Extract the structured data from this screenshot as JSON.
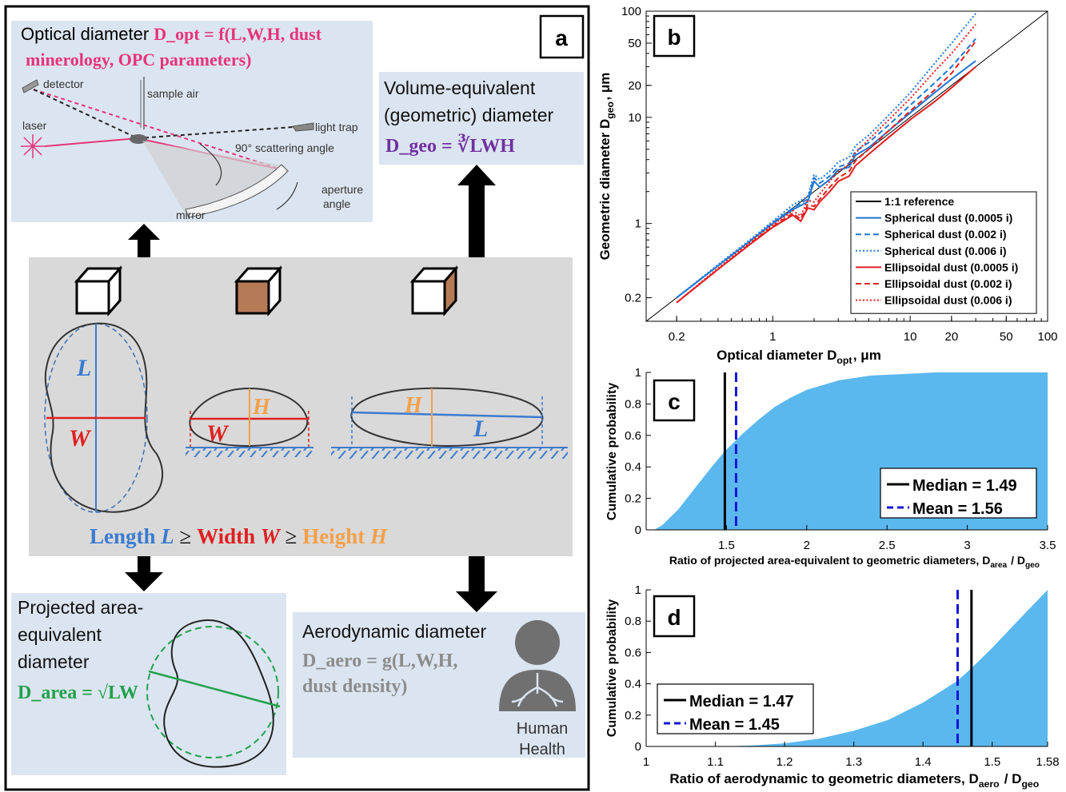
{
  "panel_a": {
    "label": "a",
    "optical": {
      "prefix": "Optical diameter ",
      "formula_line1": "D_opt = f(L,W,H, dust",
      "formula_line2": "minerology, OPC parameters)",
      "detector": "detector",
      "sample_air": "sample air",
      "laser": "laser",
      "light_trap": "light trap",
      "scattering": "90° scattering angle",
      "aperture1": "aperture",
      "aperture2": "angle",
      "mirror": "mirror"
    },
    "volume": {
      "line1": "Volume-equivalent",
      "line2": "(geometric) diameter",
      "formula": "D_geo = ∛LWH"
    },
    "shape": {
      "L": "L",
      "W": "W",
      "H": "H",
      "caption_length": "Length ",
      "caption_L": "L",
      "caption_ge1": " ≥ ",
      "caption_width": "Width ",
      "caption_W": "W",
      "caption_ge2": " ≥ ",
      "caption_height": "Height ",
      "caption_H": "H"
    },
    "projected": {
      "line1": "Projected area-",
      "line2": "equivalent",
      "line3": "diameter",
      "formula": "D_area = √LW"
    },
    "aero": {
      "title": "Aerodynamic diameter",
      "formula_line1": "D_aero = g(L,W,H,",
      "formula_line2": "dust density)",
      "human1": "Human",
      "human2": "Health"
    }
  },
  "chart_data": [
    {
      "panel": "b",
      "type": "line",
      "xlabel": "Optical diameter D_opt, μm",
      "ylabel": "Geometric diameter D_geo, μm",
      "xscale": "log",
      "yscale": "log",
      "xlim": [
        0.12,
        100
      ],
      "ylim": [
        0.12,
        100
      ],
      "xticks": [
        0.2,
        1,
        10,
        20,
        50,
        100
      ],
      "xtick_labels": [
        "0.2",
        "1",
        "10",
        "20",
        "50",
        "100"
      ],
      "yticks": [
        0.2,
        1,
        10,
        20,
        50,
        100
      ],
      "ytick_labels": [
        "0.2",
        "1",
        "10",
        "20",
        "50",
        "100"
      ],
      "legend_position": "bottom-right",
      "series": [
        {
          "name": "1:1 reference",
          "color": "#000000",
          "dash": "solid",
          "x": [
            0.12,
            100
          ],
          "y": [
            0.12,
            100
          ]
        },
        {
          "name": "Spherical dust (0.0005 i)",
          "color": "#1f77d4",
          "dash": "solid",
          "x": [
            0.2,
            0.4,
            0.7,
            1.0,
            1.4,
            1.8,
            2.0,
            2.2,
            2.6,
            3.0,
            3.6,
            4.0,
            5.0,
            7.0,
            10,
            15,
            20,
            30
          ],
          "y": [
            0.2,
            0.4,
            0.7,
            1.0,
            1.35,
            1.6,
            2.5,
            2.2,
            2.6,
            3.2,
            3.4,
            4.4,
            5.2,
            7.5,
            11,
            17,
            23,
            34
          ]
        },
        {
          "name": "Spherical dust (0.002 i)",
          "color": "#1f77d4",
          "dash": "dashed",
          "x": [
            0.2,
            0.4,
            0.7,
            1.0,
            1.4,
            1.8,
            2.0,
            2.2,
            2.6,
            3.0,
            3.6,
            4.0,
            5.0,
            7.0,
            10,
            15,
            20,
            30
          ],
          "y": [
            0.2,
            0.4,
            0.7,
            1.02,
            1.4,
            1.7,
            2.7,
            2.4,
            2.8,
            3.4,
            3.7,
            4.8,
            5.8,
            8.5,
            13,
            21,
            30,
            55
          ]
        },
        {
          "name": "Spherical dust (0.006 i)",
          "color": "#1f77d4",
          "dash": "dotted",
          "x": [
            0.2,
            0.4,
            0.7,
            1.0,
            1.4,
            1.8,
            2.0,
            2.2,
            2.6,
            3.0,
            3.6,
            4.0,
            5.0,
            7.0,
            10,
            15,
            20,
            30
          ],
          "y": [
            0.2,
            0.41,
            0.72,
            1.05,
            1.5,
            1.8,
            2.9,
            2.6,
            3.1,
            3.8,
            4.2,
            5.4,
            6.8,
            10.5,
            17,
            32,
            50,
            95
          ]
        },
        {
          "name": "Ellipsoidal dust (0.0005 i)",
          "color": "#e02020",
          "dash": "solid",
          "x": [
            0.2,
            0.4,
            0.7,
            1.0,
            1.4,
            1.6,
            1.8,
            2.0,
            2.2,
            2.6,
            3.0,
            3.6,
            4.0,
            5.0,
            7.0,
            10,
            15,
            20,
            30
          ],
          "y": [
            0.18,
            0.37,
            0.65,
            0.92,
            1.2,
            1.05,
            1.4,
            1.35,
            1.6,
            2.0,
            2.5,
            2.8,
            3.5,
            4.5,
            6.5,
            9.5,
            14,
            19,
            30
          ]
        },
        {
          "name": "Ellipsoidal dust (0.002 i)",
          "color": "#e02020",
          "dash": "dashed",
          "x": [
            0.2,
            0.4,
            0.7,
            1.0,
            1.4,
            1.6,
            1.8,
            2.0,
            2.2,
            2.6,
            3.0,
            3.6,
            4.0,
            5.0,
            7.0,
            10,
            15,
            20,
            30
          ],
          "y": [
            0.18,
            0.37,
            0.66,
            0.94,
            1.25,
            1.1,
            1.5,
            1.45,
            1.7,
            2.2,
            2.7,
            3.1,
            3.9,
            5.0,
            7.5,
            11.5,
            18,
            26,
            52
          ]
        },
        {
          "name": "Ellipsoidal dust (0.006 i)",
          "color": "#e02020",
          "dash": "dotted",
          "x": [
            0.2,
            0.4,
            0.7,
            1.0,
            1.4,
            1.6,
            1.8,
            2.0,
            2.2,
            2.6,
            3.0,
            3.6,
            4.0,
            5.0,
            7.0,
            10,
            15,
            20,
            30
          ],
          "y": [
            0.18,
            0.38,
            0.68,
            0.97,
            1.32,
            1.18,
            1.65,
            1.6,
            1.9,
            2.5,
            3.1,
            3.6,
            4.6,
            6.2,
            9.5,
            15,
            27,
            40,
            75
          ]
        }
      ]
    },
    {
      "panel": "c",
      "type": "area",
      "xlabel": "Ratio of projected area-equivalent to geometric diameters, D_area / D_geo",
      "ylabel": "Cumulative probability",
      "xlim": [
        1.0,
        3.5
      ],
      "ylim": [
        0,
        1
      ],
      "xticks": [
        1.5,
        2,
        2.5,
        3,
        3.5
      ],
      "xtick_labels": [
        "1.5",
        "2",
        "2.5",
        "3",
        "3.5"
      ],
      "yticks": [
        0,
        0.2,
        0.4,
        0.6,
        0.8,
        1
      ],
      "ytick_labels": [
        "0",
        "0.2",
        "0.4",
        "0.6",
        "0.8",
        "1"
      ],
      "cdf": {
        "x": [
          1.05,
          1.1,
          1.2,
          1.3,
          1.4,
          1.49,
          1.6,
          1.7,
          1.8,
          1.9,
          2.0,
          2.2,
          2.4,
          2.6,
          2.8,
          3.0,
          3.2,
          3.5
        ],
        "y": [
          0.0,
          0.03,
          0.13,
          0.26,
          0.39,
          0.5,
          0.61,
          0.7,
          0.78,
          0.84,
          0.89,
          0.95,
          0.98,
          0.99,
          1.0,
          1.0,
          1.0,
          1.0
        ]
      },
      "fill_color": "#5bb8ee",
      "legend_position": "bottom-right",
      "lines": [
        {
          "name": "Median = 1.49",
          "value": 1.49,
          "color": "#000000",
          "dash": "solid"
        },
        {
          "name": "Mean = 1.56",
          "value": 1.56,
          "color": "#1515d8",
          "dash": "dashed"
        }
      ]
    },
    {
      "panel": "d",
      "type": "area",
      "xlabel": "Ratio of aerodynamic to geometric diameters, D_aero / D_geo",
      "ylabel": "Cumulative probability",
      "xlim": [
        1.0,
        1.58
      ],
      "ylim": [
        0,
        1
      ],
      "xticks": [
        1,
        1.1,
        1.2,
        1.3,
        1.4,
        1.5,
        1.58
      ],
      "xtick_labels": [
        "1",
        "1.1",
        "1.2",
        "1.3",
        "1.4",
        "1.5",
        "1.58"
      ],
      "yticks": [
        0,
        0.2,
        0.4,
        0.6,
        0.8,
        1
      ],
      "ytick_labels": [
        "0",
        "0.2",
        "0.4",
        "0.6",
        "0.8",
        "1"
      ],
      "cdf": {
        "x": [
          1.1,
          1.15,
          1.2,
          1.25,
          1.3,
          1.35,
          1.4,
          1.45,
          1.47,
          1.5,
          1.53,
          1.58
        ],
        "y": [
          0.0,
          0.005,
          0.02,
          0.05,
          0.1,
          0.17,
          0.28,
          0.42,
          0.5,
          0.63,
          0.77,
          1.0
        ]
      },
      "fill_color": "#5bb8ee",
      "legend_position": "bottom-left",
      "lines": [
        {
          "name": "Median = 1.47",
          "value": 1.47,
          "color": "#000000",
          "dash": "solid"
        },
        {
          "name": "Mean = 1.45",
          "value": 1.45,
          "color": "#1515d8",
          "dash": "dashed"
        }
      ]
    }
  ]
}
